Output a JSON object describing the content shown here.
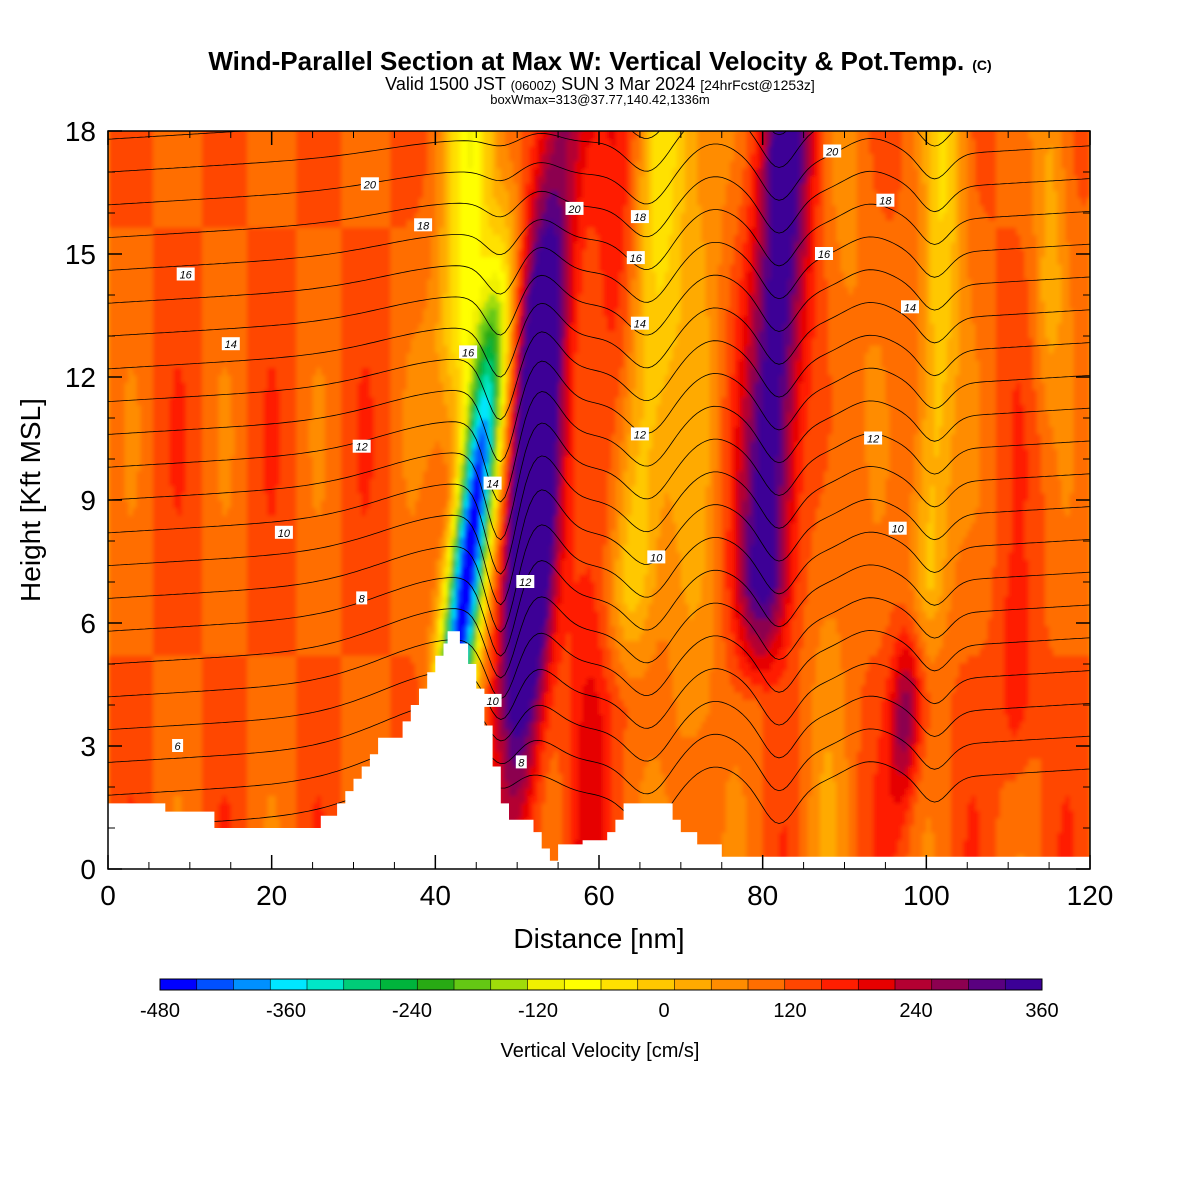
{
  "header": {
    "title": "Wind-Parallel Section at Max W: Vertical Velocity & Pot.Temp.",
    "title_suffix": "(C)",
    "subtitle_prefix": "Valid 1500 JST",
    "subtitle_utc": "(0600Z)",
    "subtitle_date": "SUN 3 Mar 2024",
    "subtitle_fcst": "[24hrFcst@1253z]",
    "subsubtitle": "boxWmax=313@37.77,140.42,1336m"
  },
  "chart_data": {
    "type": "heatmap",
    "xlabel": "Distance [nm]",
    "ylabel": "Height [Kft MSL]",
    "xlim": [
      0,
      120
    ],
    "ylim": [
      0,
      18
    ],
    "x_ticks": [
      "0",
      "20",
      "40",
      "60",
      "80",
      "100",
      "120"
    ],
    "y_ticks": [
      "0",
      "3",
      "6",
      "9",
      "12",
      "15",
      "18"
    ],
    "colorbar": {
      "label": "Vertical Velocity [cm/s]",
      "min": -480,
      "max": 360,
      "step": 30,
      "tick_labels": [
        "-480",
        "-360",
        "-240",
        "-120",
        "0",
        "120",
        "240",
        "360"
      ],
      "colors": [
        "#0000ff",
        "#0050ff",
        "#0090ff",
        "#00e6ff",
        "#00e6c8",
        "#00cc78",
        "#00b43c",
        "#28aa14",
        "#64c814",
        "#a0dc0a",
        "#f0f000",
        "#ffff00",
        "#ffe100",
        "#ffc800",
        "#ffaa00",
        "#ff8c00",
        "#ff6e00",
        "#ff4600",
        "#ff1e00",
        "#e60000",
        "#b40032",
        "#8c0050",
        "#5a0080",
        "#3c0096"
      ]
    },
    "terrain": [
      [
        0,
        1.6
      ],
      [
        7,
        1.6
      ],
      [
        7,
        1.4
      ],
      [
        13,
        1.4
      ],
      [
        13,
        1.0
      ],
      [
        26,
        1.0
      ],
      [
        26,
        1.3
      ],
      [
        28,
        1.3
      ],
      [
        28,
        1.6
      ],
      [
        29,
        1.6
      ],
      [
        29,
        1.9
      ],
      [
        30,
        1.9
      ],
      [
        30,
        2.2
      ],
      [
        31,
        2.2
      ],
      [
        31,
        2.5
      ],
      [
        32,
        2.5
      ],
      [
        32,
        2.8
      ],
      [
        33,
        2.8
      ],
      [
        33,
        3.2
      ],
      [
        36,
        3.2
      ],
      [
        36,
        3.6
      ],
      [
        37,
        3.6
      ],
      [
        37,
        4.0
      ],
      [
        38,
        4.0
      ],
      [
        38,
        4.4
      ],
      [
        39,
        4.4
      ],
      [
        39,
        4.8
      ],
      [
        40,
        4.8
      ],
      [
        40,
        5.2
      ],
      [
        41,
        5.2
      ],
      [
        41,
        5.5
      ],
      [
        41.5,
        5.5
      ],
      [
        41.5,
        5.8
      ],
      [
        43,
        5.8
      ],
      [
        43,
        5.5
      ],
      [
        44,
        5.5
      ],
      [
        44,
        5.0
      ],
      [
        45,
        5.0
      ],
      [
        45,
        4.4
      ],
      [
        46,
        4.4
      ],
      [
        46,
        3.5
      ],
      [
        47,
        3.5
      ],
      [
        47,
        2.5
      ],
      [
        48,
        2.5
      ],
      [
        48,
        1.6
      ],
      [
        49,
        1.6
      ],
      [
        49,
        1.2
      ],
      [
        52,
        1.2
      ],
      [
        52,
        0.9
      ],
      [
        53,
        0.9
      ],
      [
        53,
        0.5
      ],
      [
        54,
        0.5
      ],
      [
        54,
        0.2
      ],
      [
        55,
        0.2
      ],
      [
        55,
        0.6
      ],
      [
        58,
        0.6
      ],
      [
        58,
        0.7
      ],
      [
        61,
        0.7
      ],
      [
        61,
        0.9
      ],
      [
        62,
        0.9
      ],
      [
        62,
        1.2
      ],
      [
        63,
        1.2
      ],
      [
        63,
        1.6
      ],
      [
        69,
        1.6
      ],
      [
        69,
        1.2
      ],
      [
        70,
        1.2
      ],
      [
        70,
        0.9
      ],
      [
        72,
        0.9
      ],
      [
        72,
        0.6
      ],
      [
        75,
        0.6
      ],
      [
        75,
        0.3
      ],
      [
        120,
        0.3
      ]
    ],
    "theta_levels": [
      6,
      8,
      10,
      12,
      14,
      16,
      18,
      20
    ],
    "contour_labels": [
      {
        "text": "6",
        "x": 8.5,
        "y": 3.0
      },
      {
        "text": "8",
        "x": 31.0,
        "y": 6.6
      },
      {
        "text": "10",
        "x": 21.5,
        "y": 8.2
      },
      {
        "text": "12",
        "x": 31.0,
        "y": 10.3
      },
      {
        "text": "14",
        "x": 15.0,
        "y": 12.8
      },
      {
        "text": "16",
        "x": 9.5,
        "y": 14.5
      },
      {
        "text": "20",
        "x": 32.0,
        "y": 16.7
      },
      {
        "text": "18",
        "x": 38.5,
        "y": 15.7
      },
      {
        "text": "16",
        "x": 44.0,
        "y": 12.6
      },
      {
        "text": "14",
        "x": 47.0,
        "y": 9.4
      },
      {
        "text": "12",
        "x": 51.0,
        "y": 7.0
      },
      {
        "text": "10",
        "x": 47.0,
        "y": 4.1
      },
      {
        "text": "8",
        "x": 50.5,
        "y": 2.6
      },
      {
        "text": "20",
        "x": 57.0,
        "y": 16.1
      },
      {
        "text": "18",
        "x": 65.0,
        "y": 15.9
      },
      {
        "text": "16",
        "x": 64.5,
        "y": 14.9
      },
      {
        "text": "14",
        "x": 65.0,
        "y": 13.3
      },
      {
        "text": "12",
        "x": 65.0,
        "y": 10.6
      },
      {
        "text": "10",
        "x": 67.0,
        "y": 7.6
      },
      {
        "text": "20",
        "x": 88.5,
        "y": 17.5
      },
      {
        "text": "18",
        "x": 95.0,
        "y": 16.3
      },
      {
        "text": "16",
        "x": 87.5,
        "y": 15.0
      },
      {
        "text": "14",
        "x": 98.0,
        "y": 13.7
      },
      {
        "text": "12",
        "x": 93.5,
        "y": 10.5
      },
      {
        "text": "10",
        "x": 96.5,
        "y": 8.3
      }
    ]
  }
}
